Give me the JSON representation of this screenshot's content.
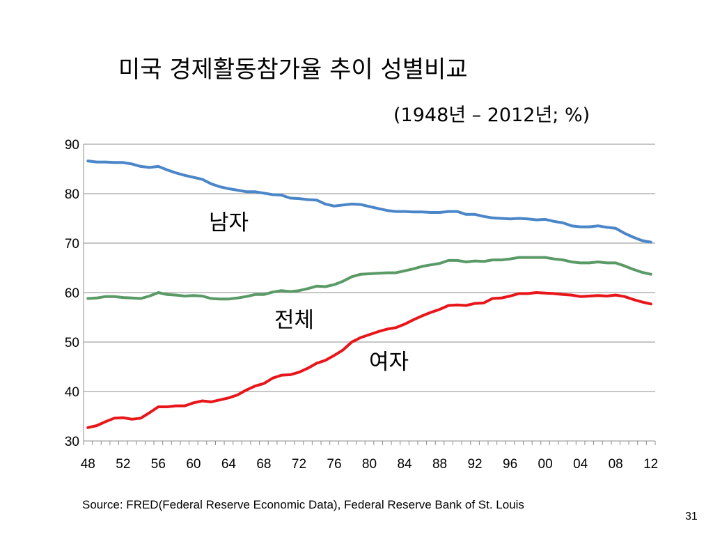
{
  "slide": {
    "title": "미국 경제활동참가율 추이 성별비교",
    "subtitle": "(1948년 – 2012년; %)",
    "source": "Source:  FRED(Federal Reserve Economic Data), Federal Reserve Bank of St. Louis",
    "page_number": "31"
  },
  "chart_data": {
    "type": "line",
    "title": "미국 경제활동참가율 추이 성별비교",
    "subtitle": "(1948년 – 2012년; %)",
    "xlabel": "",
    "ylabel": "",
    "x": [
      1948,
      1949,
      1950,
      1951,
      1952,
      1953,
      1954,
      1955,
      1956,
      1957,
      1958,
      1959,
      1960,
      1961,
      1962,
      1963,
      1964,
      1965,
      1966,
      1967,
      1968,
      1969,
      1970,
      1971,
      1972,
      1973,
      1974,
      1975,
      1976,
      1977,
      1978,
      1979,
      1980,
      1981,
      1982,
      1983,
      1984,
      1985,
      1986,
      1987,
      1988,
      1989,
      1990,
      1991,
      1992,
      1993,
      1994,
      1995,
      1996,
      1997,
      1998,
      1999,
      2000,
      2001,
      2002,
      2003,
      2004,
      2005,
      2006,
      2007,
      2008,
      2009,
      2010,
      2011,
      2012
    ],
    "xlim": [
      1947.5,
      2012.5
    ],
    "ylim": [
      30,
      90
    ],
    "yticks": [
      30,
      40,
      50,
      60,
      70,
      80,
      90
    ],
    "xtick_values": [
      1948,
      1952,
      1956,
      1960,
      1964,
      1968,
      1972,
      1976,
      1980,
      1984,
      1988,
      1992,
      1996,
      2000,
      2004,
      2008,
      2012
    ],
    "xtick_labels": [
      "48",
      "52",
      "56",
      "60",
      "64",
      "68",
      "72",
      "76",
      "80",
      "84",
      "88",
      "92",
      "96",
      "00",
      "04",
      "08",
      "12"
    ],
    "grid": "horizontal",
    "legend": "none",
    "series": [
      {
        "name": "남자",
        "color": "#4a86c8",
        "values": [
          86.6,
          86.4,
          86.4,
          86.3,
          86.3,
          86.0,
          85.5,
          85.3,
          85.5,
          84.8,
          84.2,
          83.7,
          83.3,
          82.9,
          82.0,
          81.4,
          81.0,
          80.7,
          80.4,
          80.4,
          80.1,
          79.8,
          79.7,
          79.1,
          79.0,
          78.8,
          78.7,
          77.9,
          77.5,
          77.7,
          77.9,
          77.8,
          77.4,
          77.0,
          76.6,
          76.4,
          76.4,
          76.3,
          76.3,
          76.2,
          76.2,
          76.4,
          76.4,
          75.8,
          75.8,
          75.4,
          75.1,
          75.0,
          74.9,
          75.0,
          74.9,
          74.7,
          74.8,
          74.4,
          74.1,
          73.5,
          73.3,
          73.3,
          73.5,
          73.2,
          73.0,
          72.0,
          71.2,
          70.5,
          70.2
        ]
      },
      {
        "name": "전체",
        "color": "#5a9a66",
        "values": [
          58.8,
          58.9,
          59.2,
          59.2,
          59.0,
          58.9,
          58.8,
          59.3,
          60.0,
          59.6,
          59.5,
          59.3,
          59.4,
          59.3,
          58.8,
          58.7,
          58.7,
          58.9,
          59.2,
          59.6,
          59.6,
          60.1,
          60.4,
          60.2,
          60.4,
          60.8,
          61.3,
          61.2,
          61.6,
          62.3,
          63.2,
          63.7,
          63.8,
          63.9,
          64.0,
          64.0,
          64.4,
          64.8,
          65.3,
          65.6,
          65.9,
          66.5,
          66.5,
          66.2,
          66.4,
          66.3,
          66.6,
          66.6,
          66.8,
          67.1,
          67.1,
          67.1,
          67.1,
          66.8,
          66.6,
          66.2,
          66.0,
          66.0,
          66.2,
          66.0,
          66.0,
          65.4,
          64.7,
          64.1,
          63.7
        ]
      },
      {
        "name": "여자",
        "color": "#e8161a",
        "values": [
          32.7,
          33.1,
          33.9,
          34.6,
          34.7,
          34.4,
          34.6,
          35.7,
          36.9,
          36.9,
          37.1,
          37.1,
          37.7,
          38.1,
          37.9,
          38.3,
          38.7,
          39.3,
          40.3,
          41.1,
          41.6,
          42.7,
          43.3,
          43.4,
          43.9,
          44.7,
          45.7,
          46.3,
          47.3,
          48.4,
          50.0,
          50.9,
          51.5,
          52.1,
          52.6,
          52.9,
          53.6,
          54.5,
          55.3,
          56.0,
          56.6,
          57.4,
          57.5,
          57.4,
          57.8,
          57.9,
          58.8,
          58.9,
          59.3,
          59.8,
          59.8,
          60.0,
          59.9,
          59.8,
          59.6,
          59.5,
          59.2,
          59.3,
          59.4,
          59.3,
          59.5,
          59.2,
          58.6,
          58.1,
          57.7
        ]
      }
    ],
    "annotations": [
      {
        "text": "남자",
        "series": "남자"
      },
      {
        "text": "전체",
        "series": "전체"
      },
      {
        "text": "여자",
        "series": "여자"
      }
    ]
  }
}
